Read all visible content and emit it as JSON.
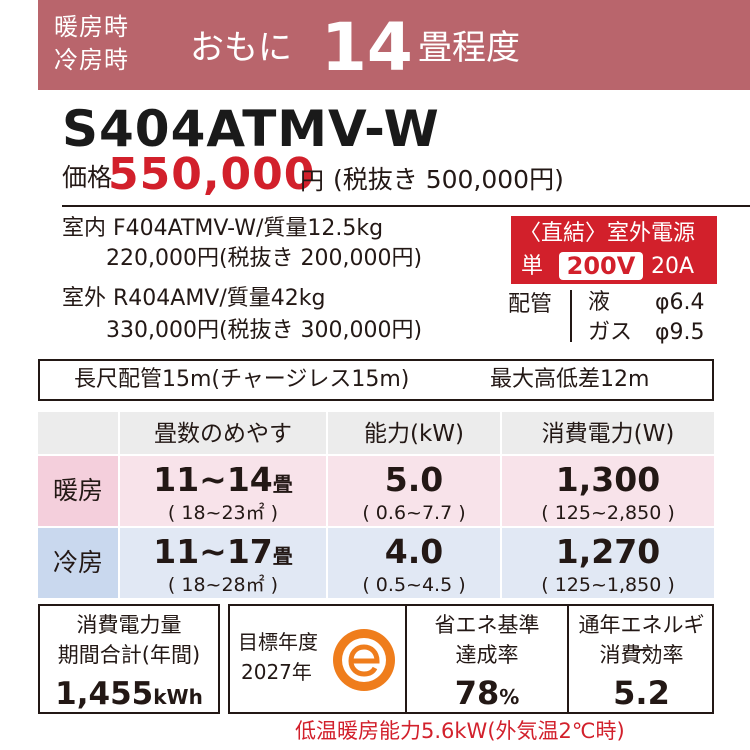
{
  "header": {
    "mode_heating": "暖房時",
    "mode_cooling": "冷房時",
    "mainly": "おもに",
    "tatami_number": "14",
    "tatami_unit": "畳程度",
    "band_color": "#b9656c"
  },
  "model": "S404ATMV-W",
  "price": {
    "label": "価格",
    "value": "550,000",
    "yen": "円",
    "tax_excluded": "(税抜き 500,000円)",
    "accent_color": "#d2202b"
  },
  "indoor": {
    "line1": "室内 F404ATMV-W/質量12.5kg",
    "line2": "220,000円(税抜き 200,000円)"
  },
  "outdoor": {
    "line1": "室外 R404AMV/質量42kg",
    "line2": "330,000円(税抜き 300,000円)"
  },
  "power": {
    "title": "〈直結〉室外電源",
    "single": "単",
    "voltage": "200V",
    "ampere": "20A"
  },
  "piping": {
    "label": "配管",
    "liquid_name": "液",
    "liquid_value": "φ6.4",
    "gas_name": "ガス",
    "gas_value": "φ9.5"
  },
  "long_piping": {
    "pipe": "長尺配管15m(チャージレス15m)",
    "height": "最大高低差12m"
  },
  "table": {
    "headers": [
      "畳数のめやす",
      "能力(kW)",
      "消費電力(W)"
    ],
    "rows": [
      {
        "label": "暖房",
        "tatami": "11~14",
        "tatami_unit": "畳",
        "area": "( 18~23㎡ )",
        "capacity": "5.0",
        "capacity_range": "( 0.6~7.7 )",
        "power": "1,300",
        "power_range": "( 125~2,850 )"
      },
      {
        "label": "冷房",
        "tatami": "11~17",
        "tatami_unit": "畳",
        "area": "( 18~28㎡ )",
        "capacity": "4.0",
        "capacity_range": "( 0.5~4.5 )",
        "power": "1,270",
        "power_range": "( 125~1,850 )"
      }
    ],
    "heat_color": "#f8e3ea",
    "cool_color": "#e1e8f4"
  },
  "annual": {
    "line1": "消費電力量",
    "line2": "期間合計(年間)",
    "value": "1,455",
    "unit": "kWh"
  },
  "target": {
    "line1": "目標年度",
    "line2": "2027年",
    "mark_letter": "e",
    "mark_color": "#ef7d1c"
  },
  "achievement": {
    "line1": "省エネ基準",
    "line2": "達成率",
    "value": "78",
    "unit": "%"
  },
  "apf": {
    "line1": "通年エネルギー",
    "line2": "消費効率",
    "value": "5.2"
  },
  "footnote": "低温暖房能力5.6kW(外気温2℃時)"
}
